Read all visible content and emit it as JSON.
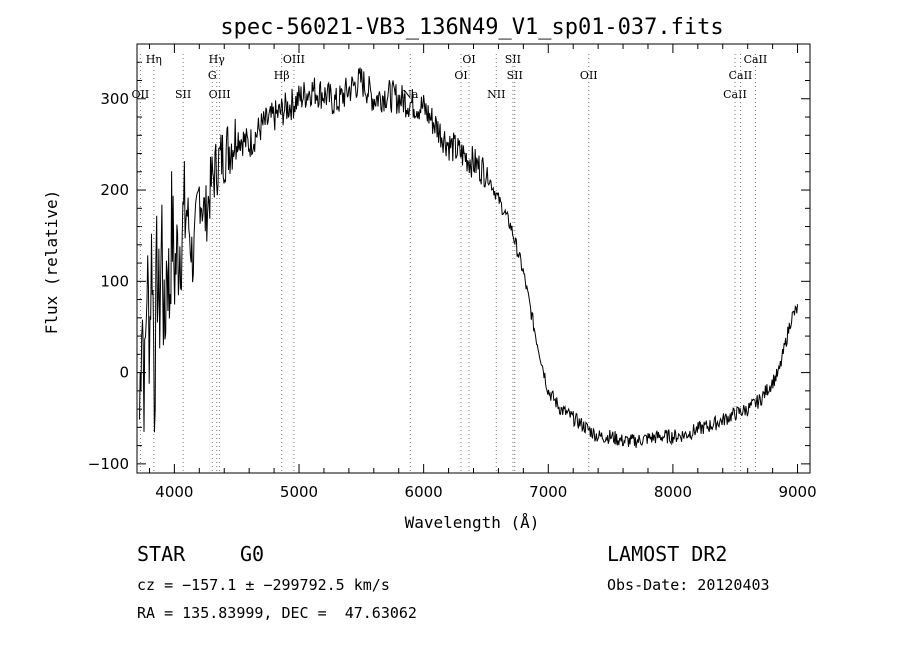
{
  "chart_data": {
    "type": "line",
    "title": "spec-56021-VB3_136N49_V1_sp01-037.fits",
    "xlabel": "Wavelength (Å)",
    "ylabel": "Flux (relative)",
    "xlim": [
      3700,
      9100
    ],
    "ylim": [
      -110,
      360
    ],
    "x_ticks": [
      "4000",
      "5000",
      "6000",
      "7000",
      "8000",
      "9000"
    ],
    "y_ticks": [
      "−100",
      "0",
      "100",
      "200",
      "300"
    ],
    "x_tick_values": [
      4000,
      5000,
      6000,
      7000,
      8000,
      9000
    ],
    "y_tick_values": [
      -100,
      0,
      100,
      200,
      300
    ],
    "grid": false,
    "series": [
      {
        "x": [
          3720,
          3740,
          3760,
          3780,
          3800,
          3820,
          3840,
          3860,
          3880,
          3900,
          3920,
          3940,
          3960,
          3980,
          4000,
          4050,
          4100,
          4150,
          4200,
          4250,
          4300,
          4350,
          4400,
          4450,
          4500,
          4600,
          4700,
          4800,
          4900,
          5000,
          5100,
          5200,
          5300,
          5400,
          5500,
          5600,
          5700,
          5800,
          5900,
          6000,
          6100,
          6200,
          6300,
          6400,
          6500,
          6600,
          6700,
          6800,
          6900,
          7000,
          7100,
          7200,
          7300,
          7400,
          7500,
          7600,
          7700,
          7800,
          7900,
          8000,
          8100,
          8200,
          8300,
          8400,
          8500,
          8600,
          8700,
          8800,
          8850,
          8900,
          8950,
          9000
        ],
        "y": [
          -50,
          90,
          -30,
          110,
          40,
          150,
          -20,
          120,
          60,
          160,
          20,
          140,
          80,
          170,
          110,
          150,
          180,
          120,
          200,
          170,
          210,
          230,
          240,
          250,
          260,
          250,
          270,
          280,
          290,
          300,
          310,
          305,
          295,
          310,
          320,
          300,
          305,
          300,
          295,
          290,
          270,
          250,
          240,
          230,
          220,
          190,
          160,
          110,
          40,
          -20,
          -40,
          -50,
          -60,
          -70,
          -70,
          -75,
          -75,
          -72,
          -70,
          -70,
          -68,
          -62,
          -58,
          -52,
          -45,
          -40,
          -30,
          -10,
          0,
          30,
          60,
          70
        ]
      }
    ],
    "lines": [
      {
        "label": "OII",
        "x": 3727,
        "row": 3
      },
      {
        "label": "Hη",
        "x": 3835,
        "row": 0
      },
      {
        "label": "SII",
        "x": 4070,
        "row": 3
      },
      {
        "label": "Hγ",
        "x": 4340,
        "row": 0
      },
      {
        "label": "G",
        "x": 4304,
        "row": 1
      },
      {
        "label": "OIII",
        "x": 4363,
        "row": 3
      },
      {
        "label": "Hβ",
        "x": 4861,
        "row": 2
      },
      {
        "label": "OIII",
        "x": 4959,
        "row": 0
      },
      {
        "label": "Na",
        "x": 5893,
        "row": 3
      },
      {
        "label": "OI",
        "x": 6300,
        "row": 1
      },
      {
        "label": "OI",
        "x": 6364,
        "row": 0
      },
      {
        "label": "NII",
        "x": 6583,
        "row": 3
      },
      {
        "label": "SII",
        "x": 6716,
        "row": 0
      },
      {
        "label": "SII",
        "x": 6731,
        "row": 1
      },
      {
        "label": "OII",
        "x": 7325,
        "row": 1
      },
      {
        "label": "CaII",
        "x": 8498,
        "row": 3
      },
      {
        "label": "CaII",
        "x": 8542,
        "row": 2
      },
      {
        "label": "CaII",
        "x": 8662,
        "row": 0
      }
    ]
  },
  "info": {
    "object_class": "STAR",
    "subclass": "G0",
    "survey": "LAMOST DR2",
    "cz": "cz = −157.1 ± −299792.5 km/s",
    "obs_date": "Obs-Date: 20120403",
    "radec": "RA = 135.83999, DEC =  47.63062"
  }
}
